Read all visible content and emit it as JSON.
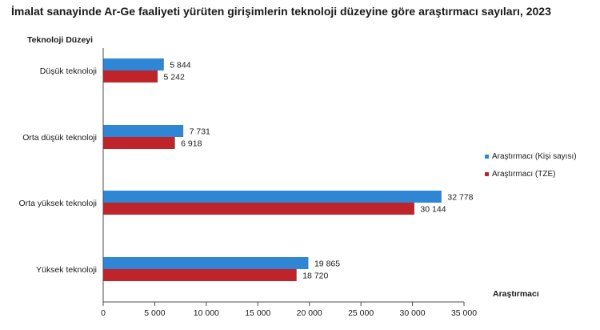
{
  "chart_data": {
    "type": "bar",
    "orientation": "horizontal",
    "title": "İmalat sanayinde Ar-Ge faaliyeti yürüten girişimlerin teknoloji düzeyine göre araştırmacı sayıları, 2023",
    "category_axis_title": "Teknoloji Düzeyi",
    "value_axis_title": "Araştırmacı",
    "categories": [
      "Düşük teknoloji",
      "Orta düşük teknoloji",
      "Orta yüksek teknoloji",
      "Yüksek teknoloji"
    ],
    "series": [
      {
        "name": "Araştırmacı (Kişi sayısı)",
        "color": "#2e86d4",
        "values": [
          5844,
          7731,
          32778,
          19865
        ],
        "labels": [
          "5 844",
          "7 731",
          "32 778",
          "19 865"
        ]
      },
      {
        "name": "Araştırmacı (TZE)",
        "color": "#c0242b",
        "values": [
          5242,
          6918,
          30144,
          18720
        ],
        "labels": [
          "5 242",
          "6 918",
          "30 144",
          "18 720"
        ]
      }
    ],
    "xlim": [
      0,
      35000
    ],
    "ticks": [
      0,
      5000,
      10000,
      15000,
      20000,
      25000,
      30000,
      35000
    ],
    "tick_labels": [
      "0",
      "5 000",
      "10 000",
      "15 000",
      "20 000",
      "25 000",
      "30 000",
      "35 000"
    ],
    "grid": false,
    "legend_position": "right"
  }
}
